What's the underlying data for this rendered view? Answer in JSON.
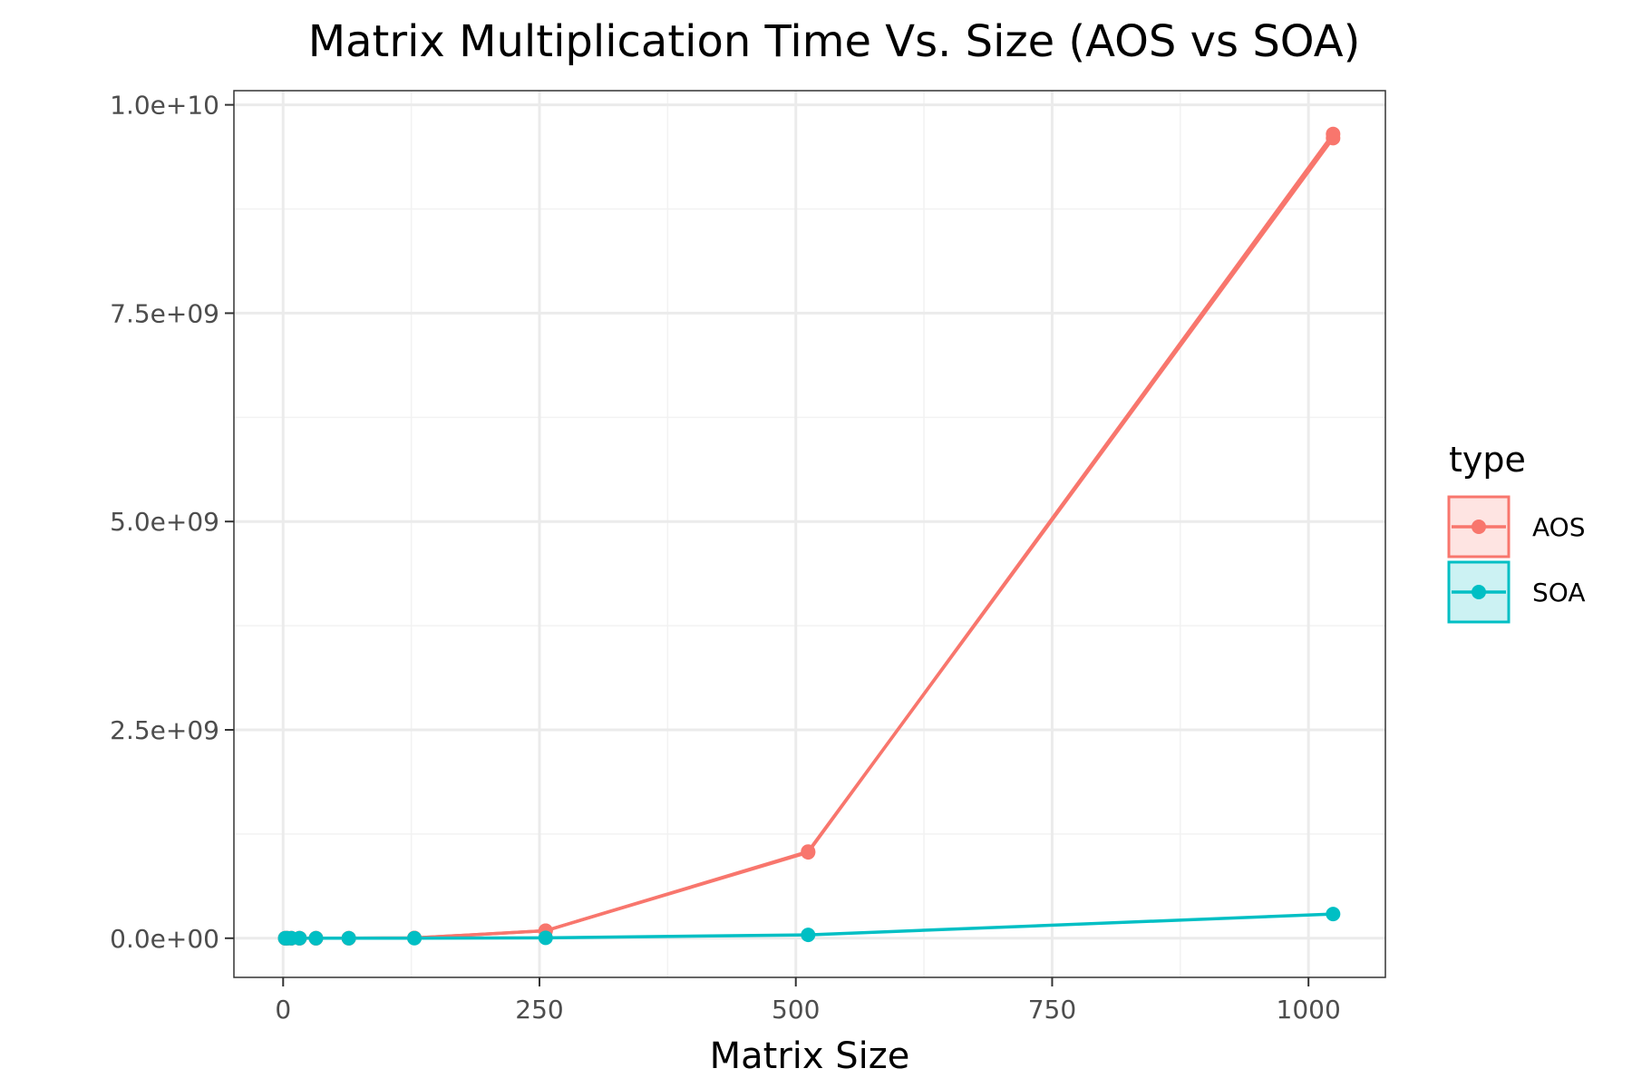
{
  "chart_data": {
    "type": "line",
    "title": "Matrix Multiplication Time Vs. Size (AOS vs SOA)",
    "xlabel": "Matrix Size",
    "ylabel": "",
    "xlim": [
      -48,
      1075
    ],
    "ylim": [
      -470000000,
      10170000000
    ],
    "x_ticks": [
      0,
      250,
      500,
      750,
      1000
    ],
    "x_tick_labels": [
      "0",
      "250",
      "500",
      "750",
      "1000"
    ],
    "y_ticks": [
      0,
      2500000000,
      5000000000,
      7500000000,
      10000000000
    ],
    "y_tick_labels": [
      "0.0e+00",
      "2.5e+09",
      "5.0e+09",
      "7.5e+09",
      "1.0e+10"
    ],
    "grid": true,
    "legend": {
      "title": "type",
      "position": "right"
    },
    "series": [
      {
        "name": "AOS",
        "color": "#F8766D",
        "x": [
          2,
          4,
          8,
          16,
          32,
          64,
          128,
          256,
          512,
          1024
        ],
        "y": [
          0,
          0,
          0,
          0,
          0,
          0,
          3000000,
          90000000,
          1040000000,
          9600000000
        ]
      },
      {
        "name": "AOS",
        "color": "#F8766D",
        "x": [
          2,
          4,
          8,
          16,
          32,
          64,
          128,
          256,
          512,
          1024
        ],
        "y": [
          0,
          0,
          0,
          0,
          0,
          0,
          3000000,
          90000000,
          1030000000,
          9650000000
        ]
      },
      {
        "name": "SOA",
        "color": "#00BFC4",
        "x": [
          2,
          4,
          8,
          16,
          32,
          64,
          128,
          256,
          512,
          1024
        ],
        "y": [
          0,
          0,
          0,
          0,
          0,
          0,
          1000000,
          5000000,
          40000000,
          290000000
        ]
      }
    ]
  }
}
